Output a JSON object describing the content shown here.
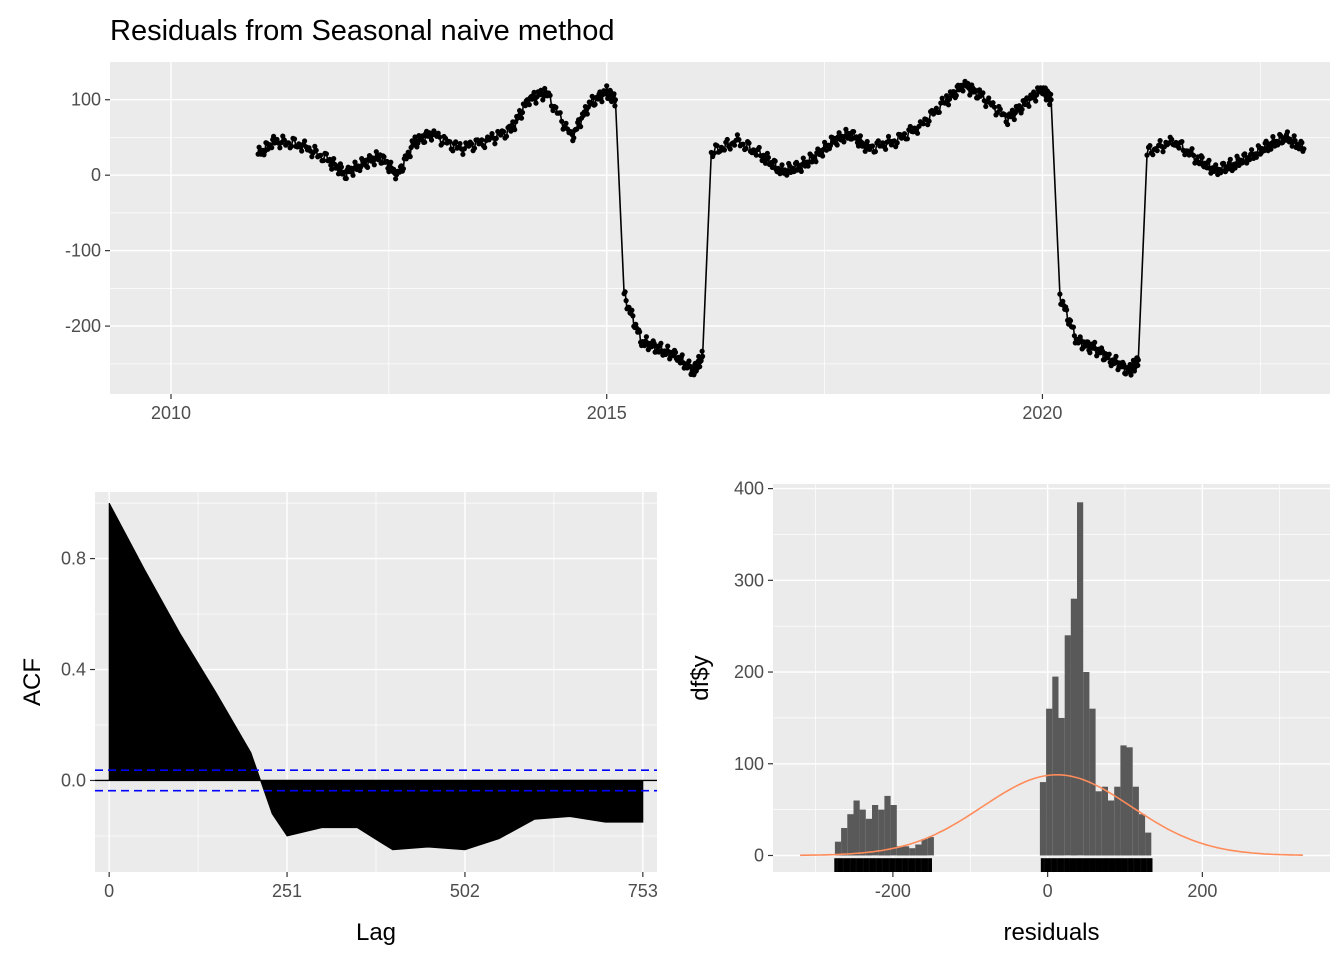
{
  "title": "Residuals from Seasonal naive method",
  "colors": {
    "panel_bg": "#ebebeb",
    "grid_major": "#ffffff",
    "series": "#000000",
    "conf_line": "#0000ff",
    "histogram": "#595959",
    "density": "#ff8c5a",
    "tick_text": "#4d4d4d"
  },
  "chart_data": [
    {
      "type": "line",
      "title": "Residuals from Seasonal naive method",
      "xlabel": "",
      "ylabel": "",
      "xlim": [
        2009.3,
        2023.3
      ],
      "ylim": [
        -290,
        150
      ],
      "x_ticks": [
        2010,
        2015,
        2020
      ],
      "x_tick_labels": [
        "2010",
        "2015",
        "2020"
      ],
      "y_ticks": [
        -200,
        -100,
        0,
        100
      ],
      "y_tick_labels": [
        "-200",
        "-100",
        "0",
        "100"
      ],
      "grid": true,
      "markers": true,
      "series": [
        {
          "values_description_free": true,
          "x": [
            2011.0,
            2011.2,
            2011.5,
            2011.8,
            2012.0,
            2012.2,
            2012.4,
            2012.6,
            2012.8,
            2013.0,
            2013.3,
            2013.6,
            2013.9,
            2014.1,
            2014.3,
            2014.6,
            2014.8,
            2015.0,
            2015.1,
            2015.2,
            2015.4,
            2015.6,
            2015.8,
            2016.0,
            2016.1,
            2016.2,
            2016.5,
            2016.8,
            2017.0,
            2017.2,
            2017.4,
            2017.6,
            2017.8,
            2018.0,
            2018.3,
            2018.6,
            2018.9,
            2019.1,
            2019.3,
            2019.6,
            2019.8,
            2020.0,
            2020.1,
            2020.2,
            2020.4,
            2020.6,
            2020.8,
            2021.0,
            2021.1,
            2021.2,
            2021.5,
            2021.8,
            2022.0,
            2022.2,
            2022.4,
            2022.6,
            2022.8,
            2023.0
          ],
          "y": [
            28,
            45,
            40,
            20,
            2,
            15,
            25,
            0,
            45,
            55,
            35,
            45,
            60,
            100,
            110,
            50,
            95,
            110,
            100,
            -160,
            -220,
            -230,
            -240,
            -260,
            -240,
            30,
            45,
            25,
            5,
            10,
            25,
            45,
            55,
            35,
            45,
            65,
            100,
            120,
            105,
            75,
            95,
            115,
            100,
            -160,
            -220,
            -230,
            -245,
            -260,
            -245,
            30,
            45,
            20,
            5,
            15,
            25,
            40,
            50,
            35
          ]
        }
      ]
    },
    {
      "type": "bar",
      "xlabel": "Lag",
      "ylabel": "ACF",
      "xlim": [
        -20,
        773
      ],
      "ylim": [
        -0.33,
        1.04
      ],
      "x_ticks": [
        0,
        251,
        502,
        753
      ],
      "x_tick_labels": [
        "0",
        "251",
        "502",
        "753"
      ],
      "y_ticks": [
        0.0,
        0.4,
        0.8
      ],
      "y_tick_labels": [
        "0.0",
        "0.4",
        "0.8"
      ],
      "grid": true,
      "conf_limit": 0.037,
      "lags": [
        0,
        50,
        100,
        150,
        200,
        230,
        251,
        300,
        350,
        400,
        450,
        502,
        550,
        600,
        650,
        700,
        753
      ],
      "acf": [
        1.0,
        0.76,
        0.53,
        0.32,
        0.1,
        -0.12,
        -0.2,
        -0.17,
        -0.17,
        -0.25,
        -0.24,
        -0.25,
        -0.21,
        -0.14,
        -0.13,
        -0.15,
        -0.15
      ]
    },
    {
      "type": "bar",
      "xlabel": "residuals",
      "ylabel": "df$y",
      "xlim": [
        -355,
        365
      ],
      "ylim": [
        -18,
        405
      ],
      "x_ticks": [
        -200,
        0,
        200
      ],
      "x_tick_labels": [
        "-200",
        "0",
        "200"
      ],
      "y_ticks": [
        0,
        100,
        200,
        300,
        400
      ],
      "y_tick_labels": [
        "0",
        "100",
        "200",
        "300",
        "400"
      ],
      "grid": true,
      "bin_width": 8,
      "bin_starts": [
        -275,
        -267,
        -259,
        -251,
        -243,
        -235,
        -227,
        -219,
        -211,
        -203,
        -195,
        -187,
        -179,
        -171,
        -163,
        -155,
        -10,
        -2,
        6,
        14,
        22,
        30,
        38,
        46,
        54,
        62,
        70,
        78,
        86,
        94,
        102,
        110,
        118,
        126
      ],
      "counts": [
        15,
        30,
        45,
        60,
        50,
        40,
        55,
        50,
        65,
        55,
        10,
        10,
        8,
        12,
        18,
        20,
        80,
        160,
        195,
        150,
        240,
        280,
        385,
        200,
        160,
        70,
        75,
        60,
        75,
        120,
        118,
        75,
        45,
        25
      ],
      "density": {
        "mean": 12,
        "sd": 96,
        "peak": 88,
        "x_range": [
          -320,
          330
        ]
      },
      "rug_ranges": [
        [
          -275,
          -150
        ],
        [
          -8,
          135
        ]
      ]
    }
  ]
}
